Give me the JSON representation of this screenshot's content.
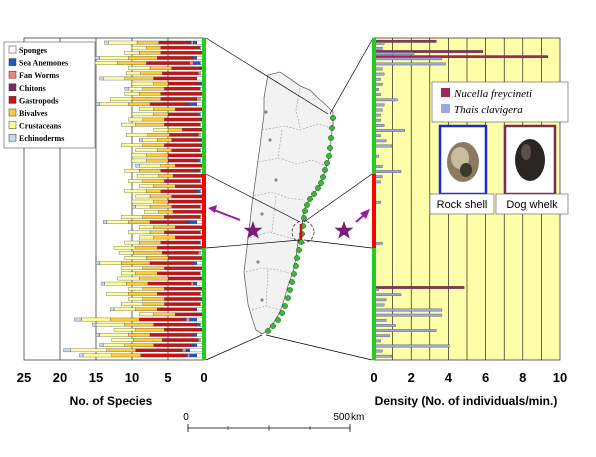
{
  "left_chart": {
    "xlabel": "No. of Species",
    "ticks": [
      "25",
      "20",
      "15",
      "10",
      "5",
      "0"
    ]
  },
  "right_chart": {
    "xlabel": "Density (No. of individuals/min.)",
    "ticks": [
      "0",
      "2",
      "4",
      "6",
      "8",
      "10"
    ]
  },
  "species_legend": [
    "Sponges",
    "Sea Anemones",
    "Fan Worms",
    "Chitons",
    "Gastropods",
    "Bivalves",
    "Crustaceans",
    "Echinoderms"
  ],
  "whelk_legend": [
    "Nucella freycineti",
    "Thais clavigera"
  ],
  "photos": {
    "rock_shell": "Rock shell",
    "dog_whelk": "Dog whelk"
  },
  "scale_bar": {
    "start": "0",
    "end": "500",
    "unit": "km"
  },
  "colors": {
    "sponges": "#ffffff",
    "sea_anemones": "#2255cc",
    "fan_worms": "#ff8080",
    "chitons": "#7a2a5a",
    "gastropods": "#cc1111",
    "bivalves": "#ffcc33",
    "crustaceans": "#ffff99",
    "echinoderms": "#c8d6f0",
    "nucella": "#9a2a5a",
    "thais": "#99a8e0",
    "green_line": "#22cc22",
    "red_segment": "#ff0000",
    "right_bg": "#ffffaa"
  },
  "chart_data": [
    {
      "type": "bar",
      "orientation": "horizontal-stacked",
      "xlabel": "No. of Species",
      "xlim": [
        25,
        0
      ],
      "series_names": [
        "Sponges",
        "Sea Anemones",
        "Fan Worms",
        "Chitons",
        "Gastropods",
        "Bivalves",
        "Crustaceans",
        "Echinoderms"
      ],
      "stations": [
        [
          1,
          0.5,
          0.3,
          0.5,
          4,
          3,
          4,
          0.5
        ],
        [
          0.5,
          0,
          0,
          0.5,
          5,
          2,
          2,
          0
        ],
        [
          0,
          0,
          0,
          0,
          6,
          3,
          2,
          0
        ],
        [
          1,
          0.5,
          0,
          0,
          5,
          4,
          4,
          1
        ],
        [
          0.5,
          1,
          0.5,
          0,
          6,
          4,
          5,
          1
        ],
        [
          0,
          0,
          0,
          0.5,
          4,
          3,
          3,
          0
        ],
        [
          0.5,
          0,
          0.3,
          0,
          5,
          3,
          2,
          0
        ],
        [
          1,
          0,
          0,
          0,
          6,
          4,
          3,
          0.5
        ],
        [
          0,
          0.5,
          0,
          0.5,
          4,
          2,
          3,
          0
        ],
        [
          0.5,
          0,
          0,
          0,
          5,
          3,
          2,
          0.5
        ],
        [
          0,
          0,
          0,
          0,
          6,
          3,
          2,
          0
        ],
        [
          0.5,
          0,
          0.5,
          0,
          5,
          4,
          3,
          0
        ],
        [
          1,
          1,
          0,
          0.5,
          5,
          3,
          4,
          0.5
        ],
        [
          0,
          0,
          0,
          0,
          4,
          3,
          2,
          0
        ],
        [
          0.5,
          0.5,
          0,
          0,
          4,
          2,
          3,
          0
        ],
        [
          0,
          0,
          0,
          0.5,
          5,
          3,
          2,
          0
        ],
        [
          0.5,
          0,
          0,
          0,
          5,
          4,
          2,
          0
        ],
        [
          0,
          0,
          0,
          0,
          3,
          2,
          2,
          0
        ],
        [
          0.5,
          0,
          0.3,
          0,
          4,
          3,
          3,
          0
        ],
        [
          0,
          0.5,
          0,
          0,
          4,
          2,
          2,
          0.5
        ],
        [
          0,
          0,
          0,
          0.5,
          5,
          3,
          3,
          0
        ],
        [
          0.5,
          0,
          0,
          0,
          4,
          2,
          3,
          0
        ],
        [
          0,
          0,
          0,
          0,
          5,
          3,
          2,
          0
        ],
        [
          0.5,
          0.5,
          0,
          0,
          4,
          3,
          2,
          0
        ],
        [
          0,
          0,
          0,
          0,
          4,
          2,
          3,
          0.5
        ],
        [
          0.5,
          0,
          0,
          0.5,
          5,
          3,
          2,
          0
        ],
        [
          0,
          0,
          0.3,
          0,
          4,
          2,
          3,
          0
        ],
        [
          0.5,
          0,
          0,
          0,
          5,
          3,
          2,
          0
        ],
        [
          0,
          0,
          0,
          0,
          4,
          3,
          2,
          0
        ],
        [
          0.5,
          0.5,
          0,
          0,
          5,
          2,
          3,
          0
        ],
        [
          0,
          0,
          0,
          0.5,
          4,
          3,
          2,
          0
        ],
        [
          0,
          0,
          0,
          0,
          5,
          2,
          3,
          0
        ],
        [
          0.5,
          0,
          0,
          0,
          4,
          3,
          2,
          0.5
        ],
        [
          0,
          0,
          0.3,
          0,
          4,
          2,
          2,
          0
        ],
        [
          0.5,
          0,
          0,
          0,
          5,
          3,
          3,
          0
        ],
        [
          1,
          1,
          0,
          0.5,
          5,
          3,
          3,
          0.5
        ],
        [
          0,
          0,
          0,
          0,
          4,
          3,
          2,
          0
        ],
        [
          0.5,
          0,
          0,
          0,
          5,
          2,
          3,
          0
        ],
        [
          0,
          0,
          0,
          0,
          4,
          3,
          2,
          0
        ],
        [
          0.5,
          0,
          0,
          0.5,
          5,
          3,
          2,
          0
        ],
        [
          0,
          0.5,
          0,
          0,
          6,
          3,
          3,
          0
        ],
        [
          0.5,
          0,
          0.3,
          0,
          5,
          4,
          2,
          0
        ],
        [
          0,
          0,
          0,
          0,
          5,
          3,
          3,
          0
        ],
        [
          1,
          0.5,
          0,
          0,
          6,
          4,
          3,
          0.5
        ],
        [
          0,
          0,
          0,
          0.5,
          5,
          3,
          3,
          0
        ],
        [
          0.5,
          0,
          0,
          0,
          6,
          3,
          2,
          0
        ],
        [
          0,
          0,
          0,
          0,
          5,
          4,
          3,
          0
        ],
        [
          1,
          0.5,
          0.3,
          0,
          6,
          3,
          3,
          0.5
        ],
        [
          0,
          0,
          0,
          0.5,
          5,
          3,
          2,
          0
        ],
        [
          0.5,
          0,
          0,
          0,
          6,
          4,
          3,
          0
        ],
        [
          0,
          0.5,
          0,
          0,
          5,
          3,
          2,
          0
        ],
        [
          0.5,
          0,
          0,
          0,
          5,
          3,
          3,
          0
        ],
        [
          1,
          0,
          0,
          0.5,
          5,
          3,
          3,
          0.5
        ],
        [
          0,
          0,
          0,
          0,
          4,
          3,
          2,
          0
        ],
        [
          1,
          1,
          0.5,
          0.5,
          6,
          4,
          4,
          1
        ],
        [
          0.5,
          0.5,
          0,
          0,
          6,
          4,
          4,
          0.5
        ],
        [
          0,
          0,
          0,
          0.5,
          5,
          4,
          3,
          0
        ],
        [
          1,
          0.5,
          0,
          0,
          6,
          3,
          4,
          0.5
        ],
        [
          0.5,
          0,
          0.3,
          0,
          5,
          4,
          3,
          0
        ],
        [
          1,
          0.5,
          0,
          0.5,
          5,
          4,
          3,
          0.5
        ],
        [
          2,
          0.5,
          0.5,
          0.5,
          6,
          4,
          5,
          1
        ],
        [
          1,
          1,
          0.3,
          0.5,
          6,
          4,
          4,
          0.5
        ]
      ]
    },
    {
      "type": "bar",
      "orientation": "horizontal",
      "xlabel": "Density (No. of individuals/min.)",
      "xlim": [
        0,
        10
      ],
      "series": [
        {
          "name": "Nucella freycineti",
          "values": [
            3.3,
            0,
            5.8,
            9.3,
            0,
            0,
            0,
            0,
            0,
            0,
            0,
            0,
            0,
            0,
            0,
            0,
            0,
            0,
            0,
            0,
            0,
            0,
            0,
            0,
            0,
            0,
            0,
            0,
            0,
            0,
            0,
            0,
            0,
            0,
            0,
            0,
            0,
            0,
            0,
            0,
            0,
            0,
            0,
            0,
            0,
            0,
            0,
            0,
            4.8,
            0,
            0,
            0,
            0,
            0,
            0,
            0,
            0,
            0,
            0,
            0,
            0,
            0
          ]
        },
        {
          "name": "Thais clavigera",
          "values": [
            0.5,
            0.4,
            2.1,
            3.6,
            3.8,
            0.4,
            0.5,
            0.3,
            0.4,
            0.2,
            0.3,
            1.2,
            0.5,
            0.4,
            0.3,
            0.3,
            0.5,
            1.6,
            0.3,
            0.6,
            0.9,
            0,
            0.2,
            0,
            0.4,
            1.4,
            0.4,
            0.3,
            0,
            0,
            0,
            0.3,
            0,
            0,
            0,
            0,
            0,
            0,
            0,
            0.4,
            0,
            0,
            0,
            0,
            0,
            0,
            0,
            0,
            0.2,
            1.4,
            0.6,
            0.5,
            3.6,
            3.6,
            0.6,
            1.1,
            3.3,
            0.8,
            0.3,
            4.0,
            0.4,
            0.9
          ]
        }
      ]
    }
  ]
}
